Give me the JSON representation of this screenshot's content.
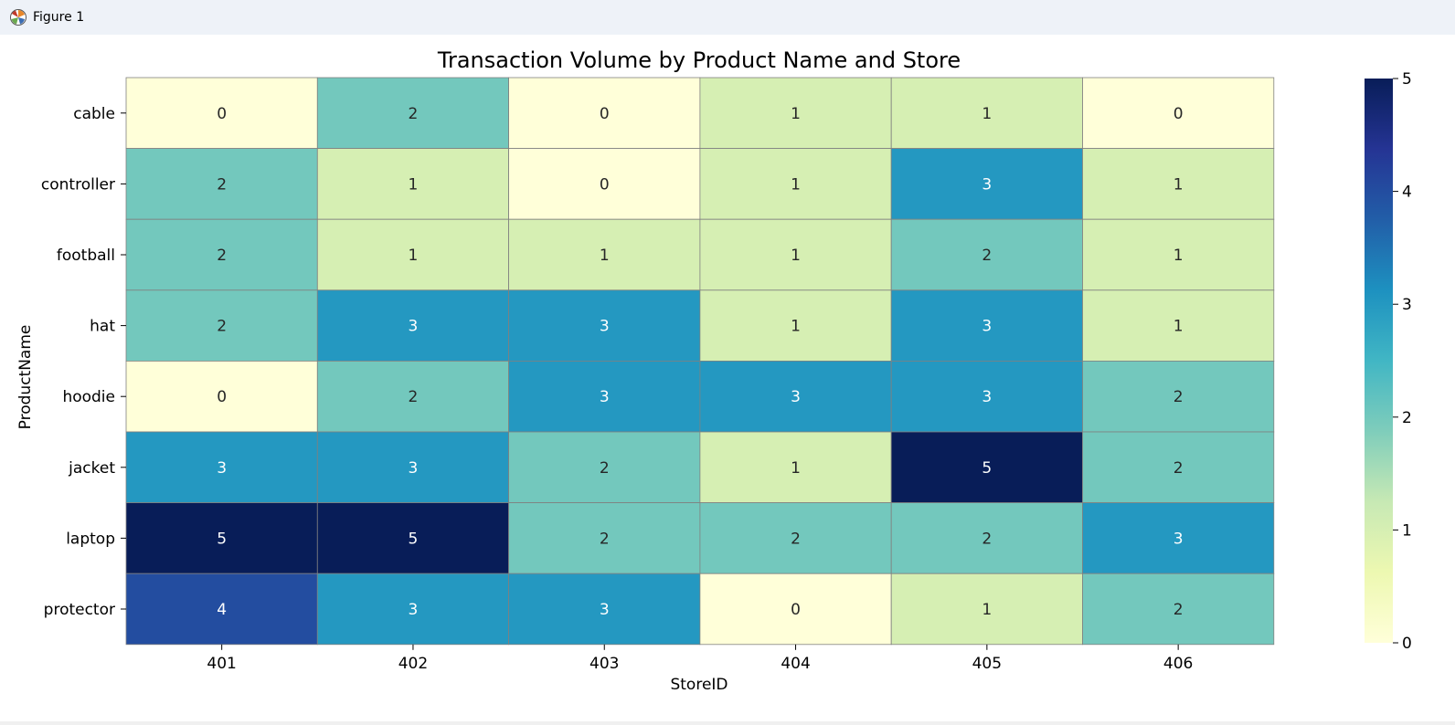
{
  "window": {
    "title": "Figure 1",
    "icon": "matplotlib-figure-icon"
  },
  "chart_data": {
    "type": "heatmap",
    "title": "Transaction Volume by Product Name and Store",
    "xlabel": "StoreID",
    "ylabel": "ProductName",
    "x": [
      "401",
      "402",
      "403",
      "404",
      "405",
      "406"
    ],
    "y": [
      "cable",
      "controller",
      "football",
      "hat",
      "hoodie",
      "jacket",
      "laptop",
      "protector"
    ],
    "values": [
      [
        0,
        2,
        0,
        1,
        1,
        0
      ],
      [
        2,
        1,
        0,
        1,
        3,
        1
      ],
      [
        2,
        1,
        1,
        1,
        2,
        1
      ],
      [
        2,
        3,
        3,
        1,
        3,
        1
      ],
      [
        0,
        2,
        3,
        3,
        3,
        2
      ],
      [
        3,
        3,
        2,
        1,
        5,
        2
      ],
      [
        5,
        5,
        2,
        2,
        2,
        3
      ],
      [
        4,
        3,
        3,
        0,
        1,
        2
      ]
    ],
    "colormap": "YlGnBu",
    "vmin": 0,
    "vmax": 5,
    "colorbar_ticks": [
      "0",
      "1",
      "2",
      "3",
      "4",
      "5"
    ],
    "annotations": true,
    "grid": false
  }
}
